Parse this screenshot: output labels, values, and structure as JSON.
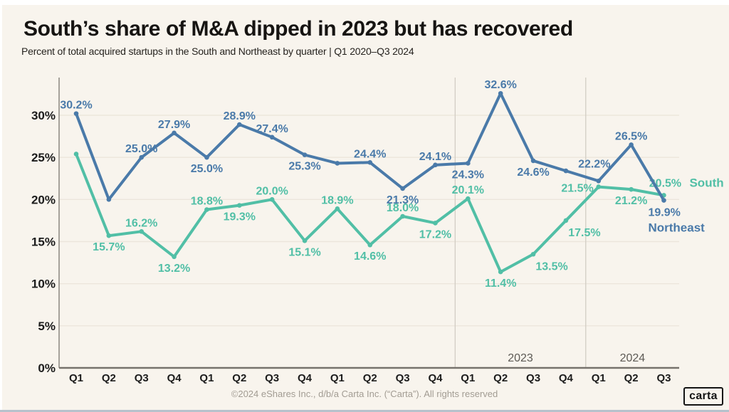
{
  "header": {
    "title": "South’s share of M&A dipped in 2023 but has recovered",
    "subtitle": "Percent of total acquired startups in the South and Northeast by quarter | Q1 2020–Q3 2024"
  },
  "footer": {
    "copyright": "©2024 eShares Inc., d/b/a Carta Inc. (“Carta”). All rights reserved",
    "logo_text": "carta"
  },
  "chart_data": {
    "type": "line",
    "x_tick_labels": [
      "Q1",
      "Q2",
      "Q3",
      "Q4",
      "Q1",
      "Q2",
      "Q3",
      "Q4",
      "Q1",
      "Q2",
      "Q3",
      "Q4",
      "Q1",
      "Q2",
      "Q3",
      "Q4",
      "Q1",
      "Q2",
      "Q3"
    ],
    "quarters": [
      "Q1 2020",
      "Q2 2020",
      "Q3 2020",
      "Q4 2020",
      "Q1 2021",
      "Q2 2021",
      "Q3 2021",
      "Q4 2021",
      "Q1 2022",
      "Q2 2022",
      "Q3 2022",
      "Q4 2022",
      "Q1 2023",
      "Q2 2023",
      "Q3 2023",
      "Q4 2023",
      "Q1 2024",
      "Q2 2024",
      "Q3 2024"
    ],
    "y_tick_labels": [
      "0%",
      "5%",
      "10%",
      "15%",
      "20%",
      "25%",
      "30%"
    ],
    "y_tick_values": [
      0,
      5,
      10,
      15,
      20,
      25,
      30
    ],
    "ylim": [
      0,
      34.5
    ],
    "grid": "horizontal",
    "legend_position": "line-end-labels",
    "years": [
      {
        "label": "2023",
        "start_index": 12
      },
      {
        "label": "2024",
        "start_index": 16
      }
    ],
    "series": [
      {
        "name": "South",
        "color": "#51bfa6",
        "values": [
          25.4,
          15.7,
          16.2,
          13.2,
          18.8,
          19.3,
          20.0,
          15.1,
          18.9,
          14.6,
          18.0,
          17.2,
          20.1,
          11.4,
          13.5,
          17.5,
          21.5,
          21.2,
          20.5
        ],
        "point_labels": [
          "",
          "15.7%",
          "16.2%",
          "13.2%",
          "18.8%",
          "19.3%",
          "20.0%",
          "15.1%",
          "18.9%",
          "14.6%",
          "18.0%",
          "17.2%",
          "20.1%",
          "11.4%",
          "13.5%",
          "17.5%",
          "21.5%",
          "21.2%",
          "20.5%"
        ],
        "label_placement": [
          "",
          "below",
          "above",
          "below",
          "above",
          "below",
          "above",
          "below",
          "above",
          "below",
          "above",
          "below",
          "above",
          "below",
          "below-right",
          "below-right",
          "left",
          "below",
          "end"
        ],
        "end_side": "above-right"
      },
      {
        "name": "Northeast",
        "color": "#4a7aa9",
        "values": [
          30.2,
          20.0,
          25.0,
          27.9,
          25.0,
          28.9,
          27.4,
          25.3,
          24.3,
          24.4,
          21.3,
          24.1,
          24.3,
          32.6,
          24.6,
          23.4,
          22.2,
          26.5,
          19.9
        ],
        "point_labels": [
          "30.2%",
          "",
          "25.0%",
          "27.9%",
          "25.0%",
          "28.9%",
          "27.4%",
          "25.3%",
          "",
          "24.4%",
          "21.3%",
          "24.1%",
          "24.3%",
          "32.6%",
          "24.6%",
          "",
          "22.2%",
          "26.5%",
          "19.9%"
        ],
        "label_placement": [
          "above",
          "",
          "above",
          "above",
          "below",
          "above",
          "above",
          "below",
          "",
          "above",
          "below",
          "above",
          "below",
          "above",
          "below",
          "",
          "above-far",
          "above",
          "end"
        ],
        "end_side": "below-right"
      }
    ]
  },
  "colors": {
    "background": "#f8f4ed",
    "page_edge": "#ffffff",
    "page_edge_bottom": "#b6c2cc",
    "title_text": "#161412",
    "subtitle_text": "#26231f",
    "tick_text": "#1c1c1c",
    "year_text": "#5d5a55",
    "footer_text": "#a29c93",
    "gridline": "#ece6dc",
    "axis_line": "#76726c",
    "y_axis_line": "#8b8780",
    "separator": "#d2cdc4",
    "south": "#51bfa6",
    "northeast": "#4a7aa9"
  }
}
